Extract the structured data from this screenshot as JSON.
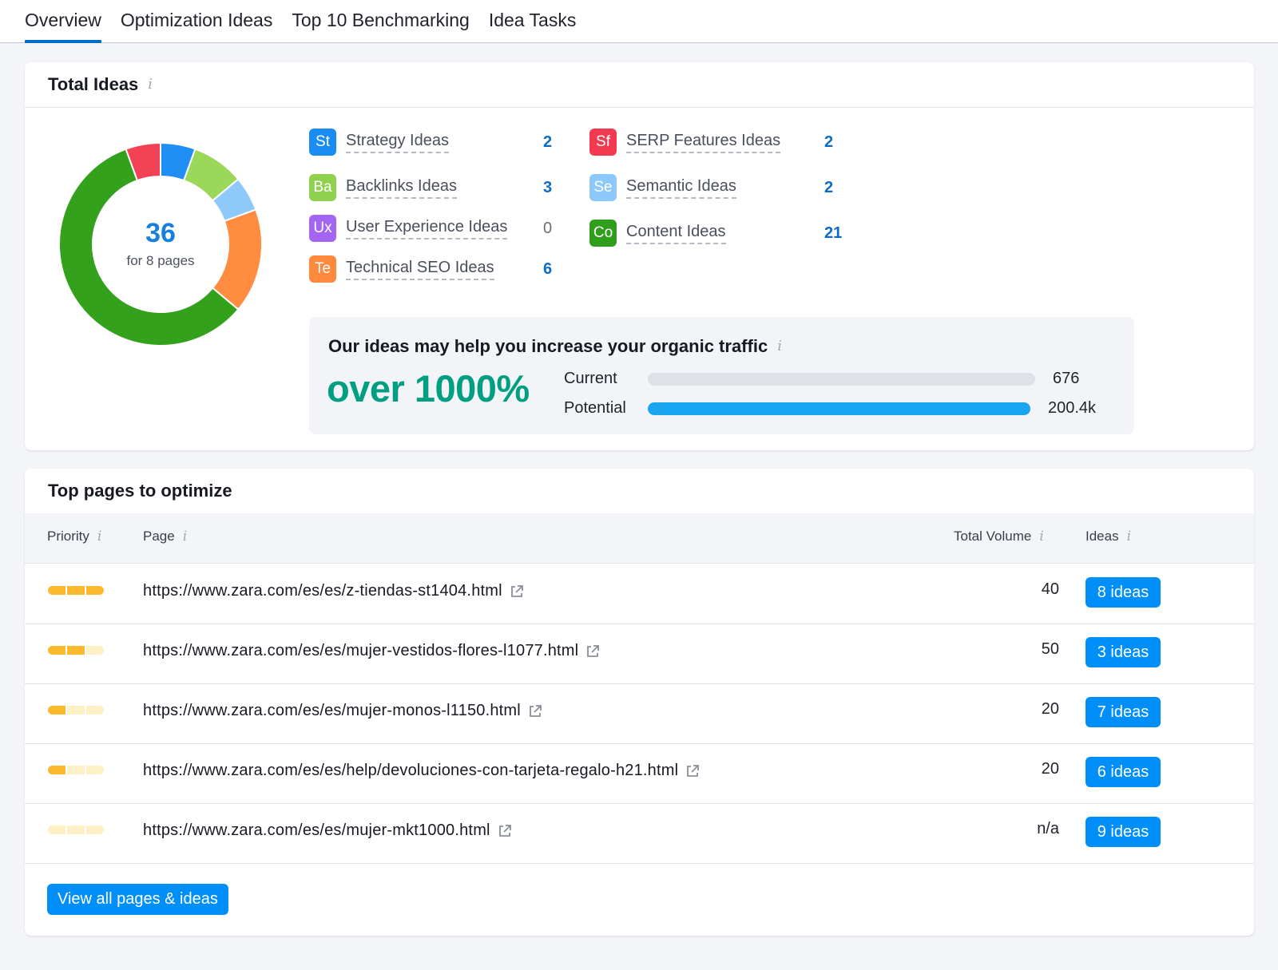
{
  "tabs": [
    {
      "label": "Overview",
      "active": true
    },
    {
      "label": "Optimization Ideas"
    },
    {
      "label": "Top 10 Benchmarking"
    },
    {
      "label": "Idea Tasks"
    }
  ],
  "total_ideas": {
    "title": "Total Ideas",
    "info_icon": "info-icon",
    "donut": {
      "total": "36",
      "subtitle": "for 8 pages",
      "segments": [
        {
          "name": "Strategy Ideas",
          "value": 2,
          "color": "#1f8ff5"
        },
        {
          "name": "Backlinks Ideas",
          "value": 3,
          "color": "#9bd85a"
        },
        {
          "name": "Semantic Ideas",
          "value": 2,
          "color": "#8fc9fa"
        },
        {
          "name": "Technical SEO Ideas",
          "value": 6,
          "color": "#ff8c3f"
        },
        {
          "name": "Content Ideas",
          "value": 21,
          "color": "#34a11d"
        },
        {
          "name": "SERP Features Ideas",
          "value": 2,
          "color": "#f34155"
        }
      ]
    },
    "ideas": [
      {
        "abbr": "St",
        "label": "Strategy Ideas",
        "count": "2",
        "color": "#1b8cf4"
      },
      {
        "abbr": "Ba",
        "label": "Backlinks Ideas",
        "count": "3",
        "color": "#8fd14f"
      },
      {
        "abbr": "Ux",
        "label": "User Experience Ideas",
        "count": "0",
        "color": "#a365f2"
      },
      {
        "abbr": "Te",
        "label": "Technical SEO Ideas",
        "count": "6",
        "color": "#ff8a3d"
      },
      {
        "abbr": "Sf",
        "label": "SERP Features Ideas",
        "count": "2",
        "color": "#f3394f"
      },
      {
        "abbr": "Se",
        "label": "Semantic Ideas",
        "count": "2",
        "color": "#8cc8fa"
      },
      {
        "abbr": "Co",
        "label": "Content Ideas",
        "count": "21",
        "color": "#2f9e1d"
      }
    ],
    "traffic": {
      "title": "Our ideas may help you increase your organic traffic",
      "increase": "over 1000%",
      "current_label": "Current",
      "current_value": "676",
      "current_fraction": 1.0,
      "current_color": "#dfe1e8",
      "potential_label": "Potential",
      "potential_value": "200.4k",
      "potential_fraction": 1.0,
      "potential_color": "#1aa5f0"
    }
  },
  "top_pages": {
    "title": "Top pages to optimize",
    "columns": {
      "priority": "Priority",
      "page": "Page",
      "volume": "Total Volume",
      "ideas": "Ideas"
    },
    "rows": [
      {
        "priority": 3,
        "url": "https://www.zara.com/es/es/z-tiendas-st1404.html",
        "volume": "40",
        "ideas": "8 ideas"
      },
      {
        "priority": 2,
        "url": "https://www.zara.com/es/es/mujer-vestidos-flores-l1077.html",
        "volume": "50",
        "ideas": "3 ideas"
      },
      {
        "priority": 1,
        "url": "https://www.zara.com/es/es/mujer-monos-l1150.html",
        "volume": "20",
        "ideas": "7 ideas"
      },
      {
        "priority": 1,
        "url": "https://www.zara.com/es/es/help/devoluciones-con-tarjeta-regalo-h21.html",
        "volume": "20",
        "ideas": "6 ideas"
      },
      {
        "priority": 0,
        "url": "https://www.zara.com/es/es/mujer-mkt1000.html",
        "volume": "n/a",
        "ideas": "9 ideas"
      }
    ],
    "view_all": "View all pages & ideas"
  }
}
